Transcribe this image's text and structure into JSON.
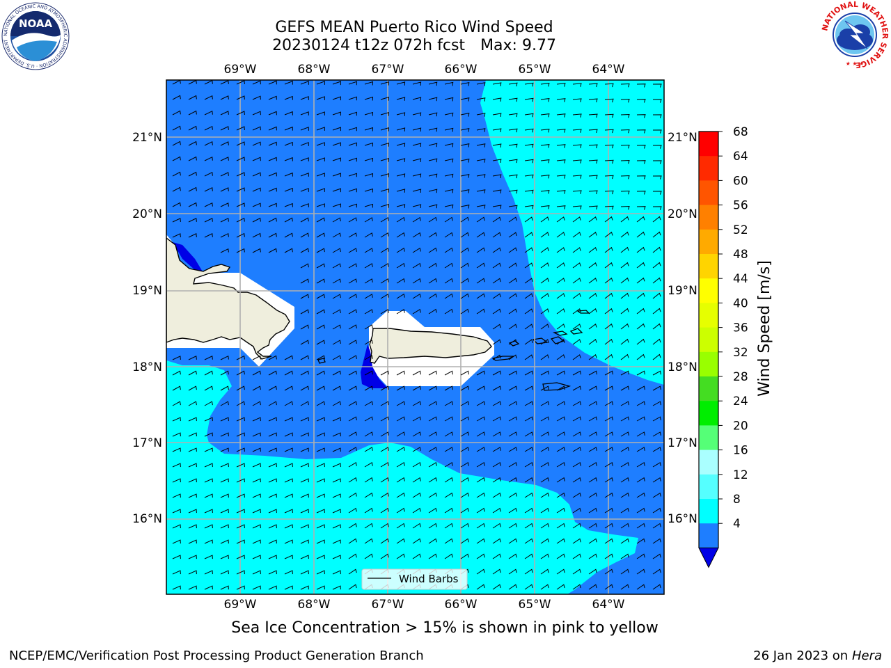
{
  "header": {
    "title": "GEFS MEAN Puerto Rico Wind Speed",
    "run": "20230124 t12z 072h fcst",
    "max": "Max: 9.77"
  },
  "logos": {
    "left": {
      "icon": "noaa-logo",
      "text": "NOAA",
      "ring_text": "NATIONAL OCEANIC AND ATMOSPHERIC ADMINISTRATION · U.S. DEPARTMENT OF COMMERCE"
    },
    "right": {
      "icon": "nws-logo",
      "ring_text": "NATIONAL WEATHER SERVICE"
    }
  },
  "map": {
    "lon_labels": [
      "69°W",
      "68°W",
      "67°W",
      "66°W",
      "65°W",
      "64°W"
    ],
    "lat_labels": [
      "21°N",
      "20°N",
      "19°N",
      "18°N",
      "17°N",
      "16°N"
    ],
    "legend": {
      "label": "Wind Barbs"
    },
    "colors": {
      "wind_4_8": "#1e7eff",
      "wind_8_12": "#00ffff",
      "wind_below_4": "#0000e6",
      "land": "#efeedd",
      "nodata": "#ffffff",
      "grid": "#b0b0b0"
    }
  },
  "colorbar": {
    "label": "Wind Speed [m/s]",
    "ticks": [
      "68",
      "64",
      "60",
      "56",
      "52",
      "48",
      "44",
      "40",
      "36",
      "32",
      "28",
      "24",
      "20",
      "16",
      "12",
      "8",
      "4"
    ],
    "colors": [
      "#ff0000",
      "#ff2a00",
      "#ff5500",
      "#ff8000",
      "#ffaa00",
      "#ffd400",
      "#ffff00",
      "#e6ff00",
      "#ccff00",
      "#99ff00",
      "#44dd22",
      "#00ee00",
      "#55ff77",
      "#aaffff",
      "#55ffff",
      "#00ffff",
      "#1e7eff"
    ],
    "under_color": "#0000e6"
  },
  "subtitle": "Sea Ice Concentration > 15% is shown in pink to yellow",
  "footer": {
    "left": "NCEP/EMC/Verification Post Processing Product Generation Branch",
    "date": "26 Jan 2023 on",
    "machine": "Hera"
  }
}
